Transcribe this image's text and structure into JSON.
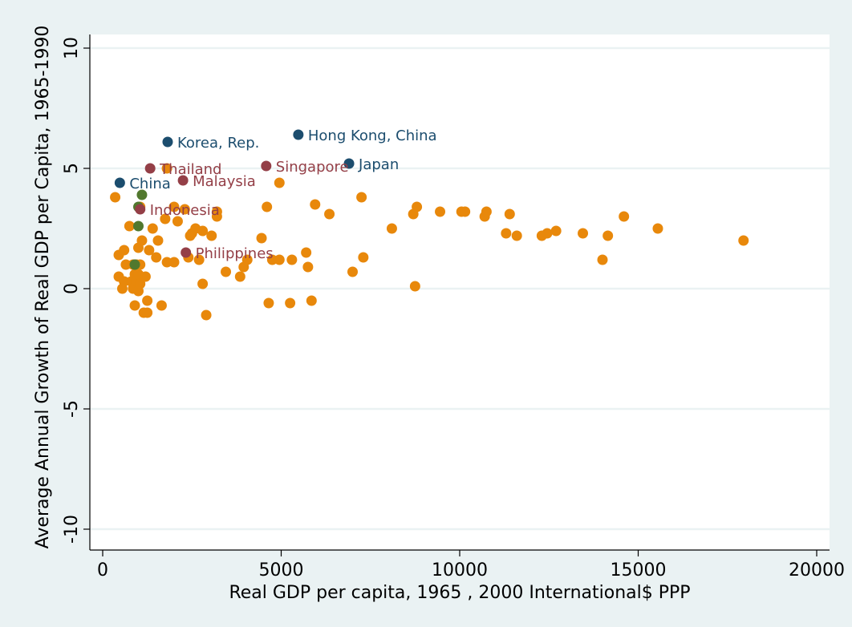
{
  "colors": {
    "background": "#eaf2f3",
    "plot_area": "#ffffff",
    "gridline": "#eaf2f3",
    "axis": "#000000",
    "other_economies": "#e8880b",
    "high_performers": "#1c4d6e",
    "second_tier": "#943f47",
    "misc_green": "#51782e"
  },
  "chart_data": {
    "type": "scatter",
    "title": "",
    "xlabel": "Real GDP per capita, 1965 , 2000 International$ PPP",
    "ylabel": "Average Annual Growth of Real GDP per Capita, 1965-1990",
    "xlim": [
      0,
      20000
    ],
    "ylim": [
      -10,
      10
    ],
    "xticks": [
      0,
      5000,
      10000,
      15000,
      20000
    ],
    "yticks": [
      -10,
      -5,
      0,
      5,
      10
    ],
    "xtick_labels": [
      "0",
      "5000",
      "10000",
      "15000",
      "20000"
    ],
    "ytick_labels": [
      "-10",
      "-5",
      "0",
      "5",
      "10"
    ],
    "grid": true,
    "legend": "none",
    "series": [
      {
        "color": "#e8880b",
        "points": [
          [
            350,
            3.8
          ],
          [
            450,
            1.4
          ],
          [
            450,
            0.5
          ],
          [
            550,
            0.0
          ],
          [
            600,
            0.3
          ],
          [
            600,
            1.6
          ],
          [
            650,
            1.0
          ],
          [
            750,
            2.6
          ],
          [
            800,
            0.3
          ],
          [
            850,
            1.0
          ],
          [
            850,
            0.0
          ],
          [
            900,
            0.6
          ],
          [
            900,
            -0.7
          ],
          [
            950,
            1.0
          ],
          [
            950,
            0.3
          ],
          [
            1000,
            -0.1
          ],
          [
            1000,
            0.6
          ],
          [
            1000,
            1.7
          ],
          [
            1050,
            3.4
          ],
          [
            1050,
            0.2
          ],
          [
            1050,
            1.0
          ],
          [
            1100,
            2.0
          ],
          [
            1150,
            -1.0
          ],
          [
            1200,
            0.5
          ],
          [
            1250,
            -1.0
          ],
          [
            1250,
            -0.5
          ],
          [
            1300,
            1.6
          ],
          [
            1400,
            2.5
          ],
          [
            1500,
            1.3
          ],
          [
            1550,
            2.0
          ],
          [
            1650,
            -0.7
          ],
          [
            1750,
            2.9
          ],
          [
            1800,
            5.0
          ],
          [
            1800,
            1.1
          ],
          [
            2000,
            1.1
          ],
          [
            2000,
            3.4
          ],
          [
            2100,
            2.8
          ],
          [
            2300,
            3.3
          ],
          [
            2400,
            1.3
          ],
          [
            2450,
            2.2
          ],
          [
            2500,
            2.3
          ],
          [
            2600,
            2.5
          ],
          [
            2700,
            1.2
          ],
          [
            2800,
            2.4
          ],
          [
            2800,
            0.2
          ],
          [
            2900,
            -1.1
          ],
          [
            3050,
            2.2
          ],
          [
            3200,
            3.0
          ],
          [
            3200,
            3.2
          ],
          [
            3450,
            0.7
          ],
          [
            3850,
            0.5
          ],
          [
            3950,
            0.9
          ],
          [
            4050,
            1.2
          ],
          [
            4450,
            2.1
          ],
          [
            4600,
            3.4
          ],
          [
            4650,
            -0.6
          ],
          [
            4750,
            1.2
          ],
          [
            4950,
            4.4
          ],
          [
            4950,
            1.2
          ],
          [
            5250,
            -0.6
          ],
          [
            5300,
            1.2
          ],
          [
            5700,
            1.5
          ],
          [
            5750,
            0.9
          ],
          [
            5850,
            -0.5
          ],
          [
            5950,
            3.5
          ],
          [
            6350,
            3.1
          ],
          [
            7000,
            0.7
          ],
          [
            7250,
            3.8
          ],
          [
            7300,
            1.3
          ],
          [
            8100,
            2.5
          ],
          [
            8700,
            3.1
          ],
          [
            8750,
            0.1
          ],
          [
            8800,
            3.4
          ],
          [
            9450,
            3.2
          ],
          [
            10050,
            3.2
          ],
          [
            10150,
            3.2
          ],
          [
            10700,
            3.0
          ],
          [
            10750,
            3.2
          ],
          [
            11300,
            2.3
          ],
          [
            11400,
            3.1
          ],
          [
            11600,
            2.2
          ],
          [
            12300,
            2.2
          ],
          [
            12450,
            2.3
          ],
          [
            12700,
            2.4
          ],
          [
            13450,
            2.3
          ],
          [
            14000,
            1.2
          ],
          [
            14150,
            2.2
          ],
          [
            14600,
            3.0
          ],
          [
            15550,
            2.5
          ],
          [
            17950,
            2.0
          ]
        ]
      },
      {
        "color": "#51782e",
        "points": [
          [
            1000,
            3.4
          ],
          [
            1100,
            3.9
          ],
          [
            1000,
            2.6
          ],
          [
            900,
            1.0
          ]
        ]
      },
      {
        "color": "#1c4d6e",
        "points": [
          {
            "x": 480,
            "y": 4.4,
            "label": "China"
          },
          {
            "x": 1820,
            "y": 6.1,
            "label": "Korea, Rep."
          },
          {
            "x": 5480,
            "y": 6.4,
            "label": "Hong Kong, China"
          },
          {
            "x": 6900,
            "y": 5.2,
            "label": "Japan"
          }
        ]
      },
      {
        "color": "#943f47",
        "points": [
          {
            "x": 1330,
            "y": 5.0,
            "label": "Thailand"
          },
          {
            "x": 2250,
            "y": 4.5,
            "label": "Malaysia"
          },
          {
            "x": 4580,
            "y": 5.1,
            "label": "Singapore"
          },
          {
            "x": 1050,
            "y": 3.3,
            "label": "Indonesia"
          },
          {
            "x": 2330,
            "y": 1.5,
            "label": "Philippines"
          }
        ]
      }
    ]
  }
}
